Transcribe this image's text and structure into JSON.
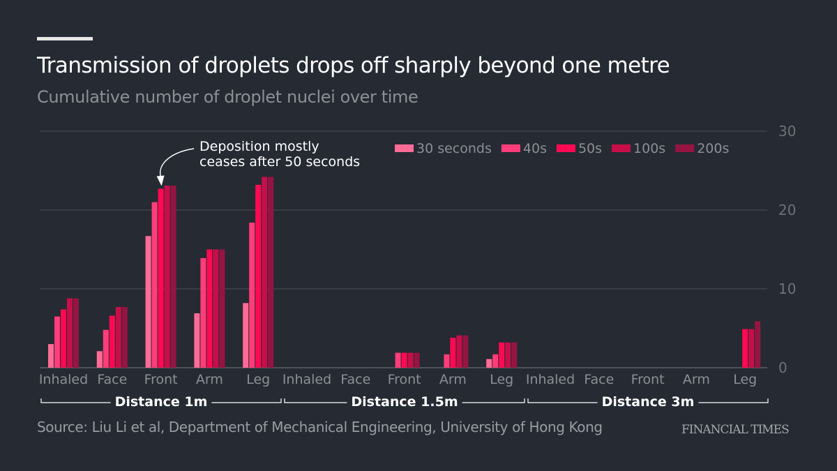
{
  "header": {
    "title": "Transmission of droplets drops off sharply beyond one metre",
    "subtitle": "Cumulative number of droplet nuclei over time"
  },
  "footer": {
    "source": "Source: Liu Li et al, Department of Mechanical Engineering, University of Hong Kong",
    "brand": "FINANCIAL TIMES"
  },
  "chart_data": {
    "type": "bar",
    "title": "Transmission of droplets drops off sharply beyond one metre",
    "subtitle": "Cumulative number of droplet nuclei over time",
    "xlabel": "",
    "ylabel": "",
    "ylim": [
      0,
      30
    ],
    "yticks": [
      "0",
      "10",
      "20",
      "30"
    ],
    "ytick_values": [
      0,
      10,
      20,
      30
    ],
    "grid": true,
    "y_axis_side": "right",
    "legend_position": "top-right",
    "groups": [
      "Distance 1m",
      "Distance 1.5m",
      "Distance 3m"
    ],
    "categories": [
      "Inhaled",
      "Face",
      "Front",
      "Arm",
      "Leg",
      "Inhaled",
      "Face",
      "Front",
      "Arm",
      "Leg",
      "Inhaled",
      "Face",
      "Front",
      "Arm",
      "Leg"
    ],
    "series": [
      {
        "name": "30 seconds",
        "color": "#ff6b97",
        "values": [
          3.0,
          2.1,
          16.7,
          6.9,
          8.2,
          0,
          0,
          0,
          0,
          1.1,
          0,
          0,
          0,
          0,
          0
        ]
      },
      {
        "name": "40s",
        "color": "#ff3d7a",
        "values": [
          6.5,
          4.8,
          21.0,
          13.9,
          18.4,
          0,
          0,
          1.9,
          1.7,
          1.7,
          0,
          0,
          0,
          0,
          0
        ]
      },
      {
        "name": "50s",
        "color": "#ff0a52",
        "values": [
          7.4,
          6.6,
          22.7,
          15.0,
          23.2,
          0,
          0,
          1.9,
          3.8,
          3.2,
          0,
          0,
          0,
          0,
          4.9
        ]
      },
      {
        "name": "100s",
        "color": "#c60f4a",
        "values": [
          8.8,
          7.7,
          23.1,
          15.0,
          24.2,
          0,
          0,
          1.9,
          4.1,
          3.2,
          0,
          0,
          0,
          0,
          4.9
        ]
      },
      {
        "name": "200s",
        "color": "#961442",
        "values": [
          8.8,
          7.7,
          23.1,
          15.0,
          24.2,
          0,
          0,
          1.9,
          4.1,
          3.2,
          0,
          0,
          0,
          0,
          5.9
        ]
      }
    ],
    "annotations": [
      {
        "text_lines": [
          "Deposition mostly",
          "ceases after 50 seconds"
        ],
        "points_to": {
          "category_index": 2,
          "series": "50s"
        }
      }
    ]
  }
}
